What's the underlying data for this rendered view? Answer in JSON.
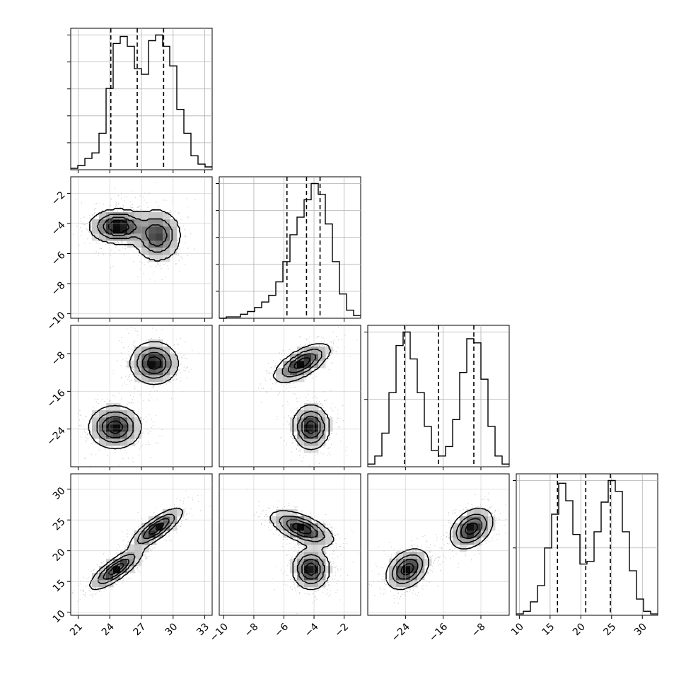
{
  "chart_data": {
    "type": "corner",
    "params": [
      {
        "axis_ticks": [
          21,
          24,
          27,
          30,
          33
        ],
        "axis_tick_labels": [
          "21",
          "24",
          "27",
          "30",
          "33"
        ],
        "range": [
          20.3,
          33.7
        ],
        "hist_edges": [
          20.3,
          33.7
        ],
        "hist_counts": [
          1,
          3,
          8,
          12,
          26,
          58,
          90,
          95,
          88,
          72,
          68,
          92,
          96,
          88,
          74,
          43,
          26,
          10,
          4,
          2
        ],
        "hist_gridlines": [
          0.2,
          0.4,
          0.6,
          0.8,
          1.0
        ],
        "quantiles": [
          24.1,
          26.6,
          29.1
        ]
      },
      {
        "axis_ticks": [
          -10,
          -8,
          -6,
          -4,
          -2
        ],
        "axis_tick_labels": [
          "−10",
          "−8",
          "−6",
          "−4",
          "−2"
        ],
        "range": [
          -10.3,
          -0.9
        ],
        "hist_edges": [
          -10.3,
          -0.9
        ],
        "hist_counts": [
          0,
          1,
          1,
          3,
          5,
          8,
          12,
          17,
          27,
          42,
          62,
          75,
          88,
          100,
          92,
          70,
          42,
          18,
          6,
          2
        ],
        "hist_gridlines": [
          0.2,
          0.4,
          0.6,
          0.8,
          1.0
        ],
        "quantiles": [
          -5.8,
          -4.5,
          -3.6
        ]
      },
      {
        "axis_ticks": [
          -24,
          -16,
          -8
        ],
        "axis_tick_labels": [
          "−24",
          "−16",
          "−8"
        ],
        "range": [
          -32.0,
          -2.0
        ],
        "hist_edges": [
          -32.0,
          -2.0
        ],
        "hist_counts": [
          2,
          8,
          25,
          55,
          90,
          100,
          80,
          55,
          30,
          12,
          8,
          15,
          35,
          70,
          95,
          92,
          65,
          30,
          8,
          2
        ],
        "hist_gridlines": [
          0.5,
          1.0
        ],
        "quantiles": [
          -24.2,
          -17.0,
          -9.5
        ]
      },
      {
        "axis_ticks": [
          10,
          15,
          20,
          25,
          30
        ],
        "axis_tick_labels": [
          "10",
          "15",
          "20",
          "25",
          "30"
        ],
        "range": [
          9.5,
          32.5
        ],
        "hist_edges": [
          9.5,
          32.5
        ],
        "hist_counts": [
          1,
          3,
          10,
          22,
          50,
          75,
          98,
          85,
          60,
          38,
          40,
          62,
          84,
          100,
          92,
          62,
          33,
          12,
          3,
          1
        ],
        "hist_gridlines": [
          0.5,
          1.0
        ],
        "quantiles": [
          16.2,
          20.8,
          24.8
        ]
      }
    ],
    "pairs": [
      {
        "row": 1,
        "col": 0,
        "modes": [
          {
            "center": [
              24.8,
              -4.2
            ],
            "sigma": [
              1.3,
              0.55
            ],
            "rho": 0,
            "weight": 1
          },
          {
            "center": [
              28.5,
              -4.8
            ],
            "sigma": [
              1.1,
              0.85
            ],
            "rho": 0,
            "weight": 0.75
          }
        ]
      },
      {
        "row": 2,
        "col": 0,
        "modes": [
          {
            "center": [
              24.5,
              -23.6
            ],
            "sigma": [
              1.2,
              2.2
            ],
            "rho": 0,
            "weight": 1
          },
          {
            "center": [
              28.2,
              -10.0
            ],
            "sigma": [
              1.1,
              2.2
            ],
            "rho": 0,
            "weight": 1
          }
        ]
      },
      {
        "row": 2,
        "col": 1,
        "modes": [
          {
            "center": [
              -4.8,
              -10.0
            ],
            "sigma": [
              0.9,
              2.0
            ],
            "rho": 0.65,
            "weight": 1
          },
          {
            "center": [
              -4.2,
              -23.6
            ],
            "sigma": [
              0.6,
              2.3
            ],
            "rho": 0,
            "weight": 1
          }
        ]
      },
      {
        "row": 3,
        "col": 0,
        "modes": [
          {
            "center": [
              24.6,
              17.0
            ],
            "sigma": [
              1.2,
              1.6
            ],
            "rho": 0.8,
            "weight": 1
          },
          {
            "center": [
              28.4,
              23.6
            ],
            "sigma": [
              1.2,
              1.6
            ],
            "rho": 0.8,
            "weight": 1
          }
        ]
      },
      {
        "row": 3,
        "col": 1,
        "modes": [
          {
            "center": [
              -4.8,
              23.6
            ],
            "sigma": [
              1.0,
              1.4
            ],
            "rho": -0.6,
            "weight": 1
          },
          {
            "center": [
              -4.2,
              17.0
            ],
            "sigma": [
              0.6,
              1.6
            ],
            "rho": 0,
            "weight": 1
          }
        ]
      },
      {
        "row": 3,
        "col": 2,
        "modes": [
          {
            "center": [
              -23.6,
              17.0
            ],
            "sigma": [
              2.2,
              1.6
            ],
            "rho": 0.35,
            "weight": 1
          },
          {
            "center": [
              -10.0,
              23.6
            ],
            "sigma": [
              2.2,
              1.6
            ],
            "rho": 0.35,
            "weight": 1
          }
        ]
      }
    ],
    "contour_levels": [
      0.12,
      0.35,
      0.6,
      0.85
    ],
    "hist2d_bins": 20,
    "grid": true
  }
}
